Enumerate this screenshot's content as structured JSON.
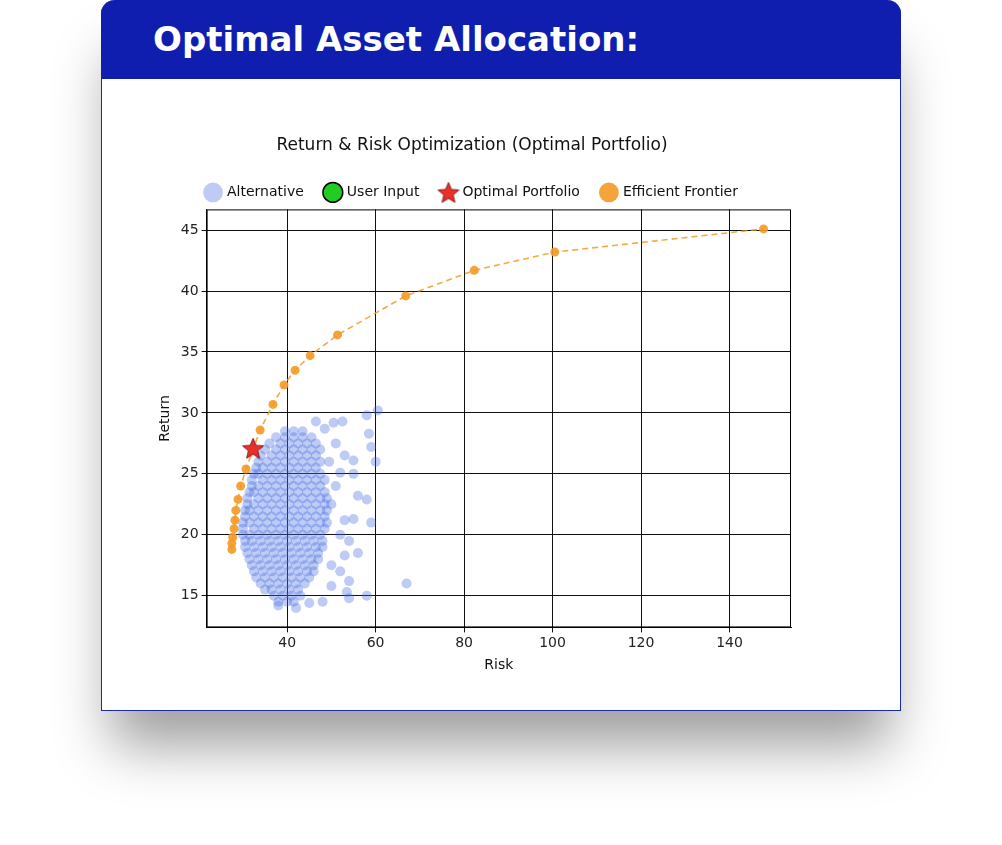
{
  "header": {
    "title": "Optimal Asset Allocation:"
  },
  "chart_data": {
    "type": "scatter",
    "title": "Return & Risk Optimization (Optimal Portfolio)",
    "x_label": "Risk",
    "y_label": "Return",
    "xlim": [
      21.8,
      153.9
    ],
    "xticks": [
      40,
      60,
      80,
      100,
      120,
      140
    ],
    "ylim": [
      12.4,
      46.7
    ],
    "yticks": [
      15,
      20,
      25,
      30,
      35,
      40,
      45
    ],
    "grid": true,
    "legend": "top",
    "series": [
      {
        "name": "Alternative",
        "color": "#4169e1",
        "marker": "circle",
        "values": [
          [
            38,
            14.5
          ],
          [
            40,
            14.5
          ],
          [
            41.5,
            14.5
          ],
          [
            37,
            15
          ],
          [
            39,
            15
          ],
          [
            41,
            15
          ],
          [
            43,
            15
          ],
          [
            35,
            15.5
          ],
          [
            36.5,
            15.5
          ],
          [
            38.5,
            15.5
          ],
          [
            40.5,
            15.5
          ],
          [
            42.5,
            15.5
          ],
          [
            34,
            16
          ],
          [
            36,
            16
          ],
          [
            38,
            16
          ],
          [
            40,
            16
          ],
          [
            42,
            16
          ],
          [
            44,
            16
          ],
          [
            33,
            16.5
          ],
          [
            35,
            16.5
          ],
          [
            37,
            16.5
          ],
          [
            39,
            16.5
          ],
          [
            41,
            16.5
          ],
          [
            43,
            16.5
          ],
          [
            45,
            16.5
          ],
          [
            32.5,
            17
          ],
          [
            34.5,
            17
          ],
          [
            36.5,
            17
          ],
          [
            38.5,
            17
          ],
          [
            40.5,
            17
          ],
          [
            42.5,
            17
          ],
          [
            44.5,
            17
          ],
          [
            46,
            17
          ],
          [
            32,
            17.5
          ],
          [
            34,
            17.5
          ],
          [
            36,
            17.5
          ],
          [
            38,
            17.5
          ],
          [
            40,
            17.5
          ],
          [
            42,
            17.5
          ],
          [
            44,
            17.5
          ],
          [
            46,
            17.5
          ],
          [
            31.5,
            18
          ],
          [
            33.5,
            18
          ],
          [
            35.5,
            18
          ],
          [
            37.5,
            18
          ],
          [
            39.5,
            18
          ],
          [
            41.5,
            18
          ],
          [
            43.5,
            18
          ],
          [
            45.5,
            18
          ],
          [
            47,
            18
          ],
          [
            31,
            18.5
          ],
          [
            33,
            18.5
          ],
          [
            35,
            18.5
          ],
          [
            37,
            18.5
          ],
          [
            39,
            18.5
          ],
          [
            41,
            18.5
          ],
          [
            43,
            18.5
          ],
          [
            45,
            18.5
          ],
          [
            47,
            18.5
          ],
          [
            30.5,
            19
          ],
          [
            32.5,
            19
          ],
          [
            34.5,
            19
          ],
          [
            36.5,
            19
          ],
          [
            38.5,
            19
          ],
          [
            40.5,
            19
          ],
          [
            42.5,
            19
          ],
          [
            44.5,
            19
          ],
          [
            46.5,
            19
          ],
          [
            48,
            19
          ],
          [
            30.5,
            19.5
          ],
          [
            32,
            19.5
          ],
          [
            34,
            19.5
          ],
          [
            36,
            19.5
          ],
          [
            38,
            19.5
          ],
          [
            40,
            19.5
          ],
          [
            42,
            19.5
          ],
          [
            44,
            19.5
          ],
          [
            46,
            19.5
          ],
          [
            48,
            19.5
          ],
          [
            30,
            20
          ],
          [
            31.5,
            20
          ],
          [
            33.5,
            20
          ],
          [
            35.5,
            20
          ],
          [
            37.5,
            20
          ],
          [
            39.5,
            20
          ],
          [
            41.5,
            20
          ],
          [
            43.5,
            20
          ],
          [
            45.5,
            20
          ],
          [
            47.5,
            20
          ],
          [
            30,
            20.5
          ],
          [
            32.5,
            20.5
          ],
          [
            34.5,
            20.5
          ],
          [
            36.5,
            20.5
          ],
          [
            38.5,
            20.5
          ],
          [
            40.5,
            20.5
          ],
          [
            42.5,
            20.5
          ],
          [
            44.5,
            20.5
          ],
          [
            46.5,
            20.5
          ],
          [
            48.5,
            20.5
          ],
          [
            30,
            21
          ],
          [
            31.5,
            21
          ],
          [
            33.5,
            21
          ],
          [
            35.5,
            21
          ],
          [
            37.5,
            21
          ],
          [
            39.5,
            21
          ],
          [
            41.5,
            21
          ],
          [
            43.5,
            21
          ],
          [
            45.5,
            21
          ],
          [
            47.5,
            21
          ],
          [
            49,
            21
          ],
          [
            30.5,
            21.5
          ],
          [
            32.5,
            21.5
          ],
          [
            34.5,
            21.5
          ],
          [
            36.5,
            21.5
          ],
          [
            38.5,
            21.5
          ],
          [
            40.5,
            21.5
          ],
          [
            42.5,
            21.5
          ],
          [
            44.5,
            21.5
          ],
          [
            46.5,
            21.5
          ],
          [
            48.5,
            21.5
          ],
          [
            30.5,
            22
          ],
          [
            31.5,
            22
          ],
          [
            33.5,
            22
          ],
          [
            35.5,
            22
          ],
          [
            37.5,
            22
          ],
          [
            39.5,
            22
          ],
          [
            41.5,
            22
          ],
          [
            43.5,
            22
          ],
          [
            45.5,
            22
          ],
          [
            47.5,
            22
          ],
          [
            49,
            22
          ],
          [
            31,
            22.5
          ],
          [
            32.5,
            22.5
          ],
          [
            34.5,
            22.5
          ],
          [
            36.5,
            22.5
          ],
          [
            38.5,
            22.5
          ],
          [
            40.5,
            22.5
          ],
          [
            42.5,
            22.5
          ],
          [
            44.5,
            22.5
          ],
          [
            46.5,
            22.5
          ],
          [
            48.5,
            22.5
          ],
          [
            31,
            23
          ],
          [
            33.5,
            23
          ],
          [
            35.5,
            23
          ],
          [
            37.5,
            23
          ],
          [
            39.5,
            23
          ],
          [
            41.5,
            23
          ],
          [
            43.5,
            23
          ],
          [
            45.5,
            23
          ],
          [
            47.5,
            23
          ],
          [
            49,
            23
          ],
          [
            31.5,
            23.5
          ],
          [
            32.5,
            23.5
          ],
          [
            34.5,
            23.5
          ],
          [
            36.5,
            23.5
          ],
          [
            38.5,
            23.5
          ],
          [
            40.5,
            23.5
          ],
          [
            42.5,
            23.5
          ],
          [
            44.5,
            23.5
          ],
          [
            46.5,
            23.5
          ],
          [
            48.5,
            23.5
          ],
          [
            32,
            24
          ],
          [
            33.5,
            24
          ],
          [
            35.5,
            24
          ],
          [
            37.5,
            24
          ],
          [
            39.5,
            24
          ],
          [
            41.5,
            24
          ],
          [
            43.5,
            24
          ],
          [
            45.5,
            24
          ],
          [
            47.5,
            24
          ],
          [
            32,
            24.5
          ],
          [
            34.5,
            24.5
          ],
          [
            36.5,
            24.5
          ],
          [
            38.5,
            24.5
          ],
          [
            40.5,
            24.5
          ],
          [
            42.5,
            24.5
          ],
          [
            44.5,
            24.5
          ],
          [
            46.5,
            24.5
          ],
          [
            48.5,
            24.5
          ],
          [
            32.5,
            25
          ],
          [
            33.5,
            25
          ],
          [
            35.5,
            25
          ],
          [
            37.5,
            25
          ],
          [
            39.5,
            25
          ],
          [
            41.5,
            25
          ],
          [
            43.5,
            25
          ],
          [
            45.5,
            25
          ],
          [
            47.5,
            25
          ],
          [
            33,
            25.5
          ],
          [
            34.5,
            25.5
          ],
          [
            36.5,
            25.5
          ],
          [
            38.5,
            25.5
          ],
          [
            40.5,
            25.5
          ],
          [
            42.5,
            25.5
          ],
          [
            44.5,
            25.5
          ],
          [
            46.5,
            25.5
          ],
          [
            33.5,
            26
          ],
          [
            35.5,
            26
          ],
          [
            37.5,
            26
          ],
          [
            39.5,
            26
          ],
          [
            41.5,
            26
          ],
          [
            43.5,
            26
          ],
          [
            45.5,
            26
          ],
          [
            47.5,
            26
          ],
          [
            34,
            26.5
          ],
          [
            36.5,
            26.5
          ],
          [
            38.5,
            26.5
          ],
          [
            40.5,
            26.5
          ],
          [
            42.5,
            26.5
          ],
          [
            44.5,
            26.5
          ],
          [
            46.5,
            26.5
          ],
          [
            35,
            27
          ],
          [
            37.5,
            27
          ],
          [
            39.5,
            27
          ],
          [
            41.5,
            27
          ],
          [
            43.5,
            27
          ],
          [
            45.5,
            27
          ],
          [
            47.5,
            27
          ],
          [
            36,
            27.5
          ],
          [
            38.5,
            27.5
          ],
          [
            40.5,
            27.5
          ],
          [
            42.5,
            27.5
          ],
          [
            44.5,
            27.5
          ],
          [
            46.5,
            27.5
          ],
          [
            37.5,
            28
          ],
          [
            39.5,
            28
          ],
          [
            41.5,
            28
          ],
          [
            43.5,
            28
          ],
          [
            45.5,
            28
          ],
          [
            39.5,
            28.5
          ],
          [
            41.5,
            28.5
          ],
          [
            43.5,
            28.5
          ],
          [
            46.5,
            29.3
          ],
          [
            48.5,
            28.7
          ],
          [
            50.5,
            29.2
          ],
          [
            52.5,
            29.3
          ],
          [
            58,
            29.8
          ],
          [
            60.5,
            30.2
          ],
          [
            58.5,
            28.3
          ],
          [
            59,
            27.2
          ],
          [
            60,
            26
          ],
          [
            55,
            26.1
          ],
          [
            53,
            26.5
          ],
          [
            52,
            25.1
          ],
          [
            55,
            25
          ],
          [
            51,
            24
          ],
          [
            56,
            23.2
          ],
          [
            58,
            22.9
          ],
          [
            55,
            21.3
          ],
          [
            53,
            21.2
          ],
          [
            59,
            21
          ],
          [
            52,
            20
          ],
          [
            54,
            19.5
          ],
          [
            56,
            18.5
          ],
          [
            53,
            18.3
          ],
          [
            50,
            17.5
          ],
          [
            52,
            17
          ],
          [
            54,
            16.2
          ],
          [
            50,
            15.8
          ],
          [
            53.5,
            15.3
          ],
          [
            58,
            15
          ],
          [
            48,
            14.5
          ],
          [
            45,
            14.4
          ],
          [
            42,
            14
          ],
          [
            38,
            14.2
          ],
          [
            67,
            16
          ],
          [
            54,
            14.8
          ],
          [
            50,
            22.5
          ],
          [
            51,
            27.5
          ],
          [
            49.5,
            26
          ]
        ]
      },
      {
        "name": "User Input",
        "color": "#22cc22",
        "marker": "circle",
        "values": []
      },
      {
        "name": "Optimal Portfolio",
        "color": "#e8302a",
        "marker": "star",
        "values": [
          [
            32.3,
            27.1
          ]
        ]
      },
      {
        "name": "Efficient Frontier",
        "color": "#f39a26",
        "marker": "circle",
        "type": "line",
        "line_style": "dashed",
        "values": [
          [
            27.5,
            18.8
          ],
          [
            27.5,
            19.3
          ],
          [
            27.7,
            19.8
          ],
          [
            28.0,
            20.5
          ],
          [
            28.2,
            21.2
          ],
          [
            28.4,
            22.0
          ],
          [
            28.9,
            22.9
          ],
          [
            29.5,
            24.0
          ],
          [
            30.7,
            25.4
          ],
          [
            33.9,
            28.6
          ],
          [
            36.8,
            30.7
          ],
          [
            39.3,
            32.3
          ],
          [
            41.8,
            33.5
          ],
          [
            45.2,
            34.7
          ],
          [
            51.4,
            36.4
          ],
          [
            66.8,
            39.6
          ],
          [
            82.3,
            41.7
          ],
          [
            100.5,
            43.2
          ],
          [
            147.7,
            45.1
          ]
        ]
      }
    ]
  }
}
